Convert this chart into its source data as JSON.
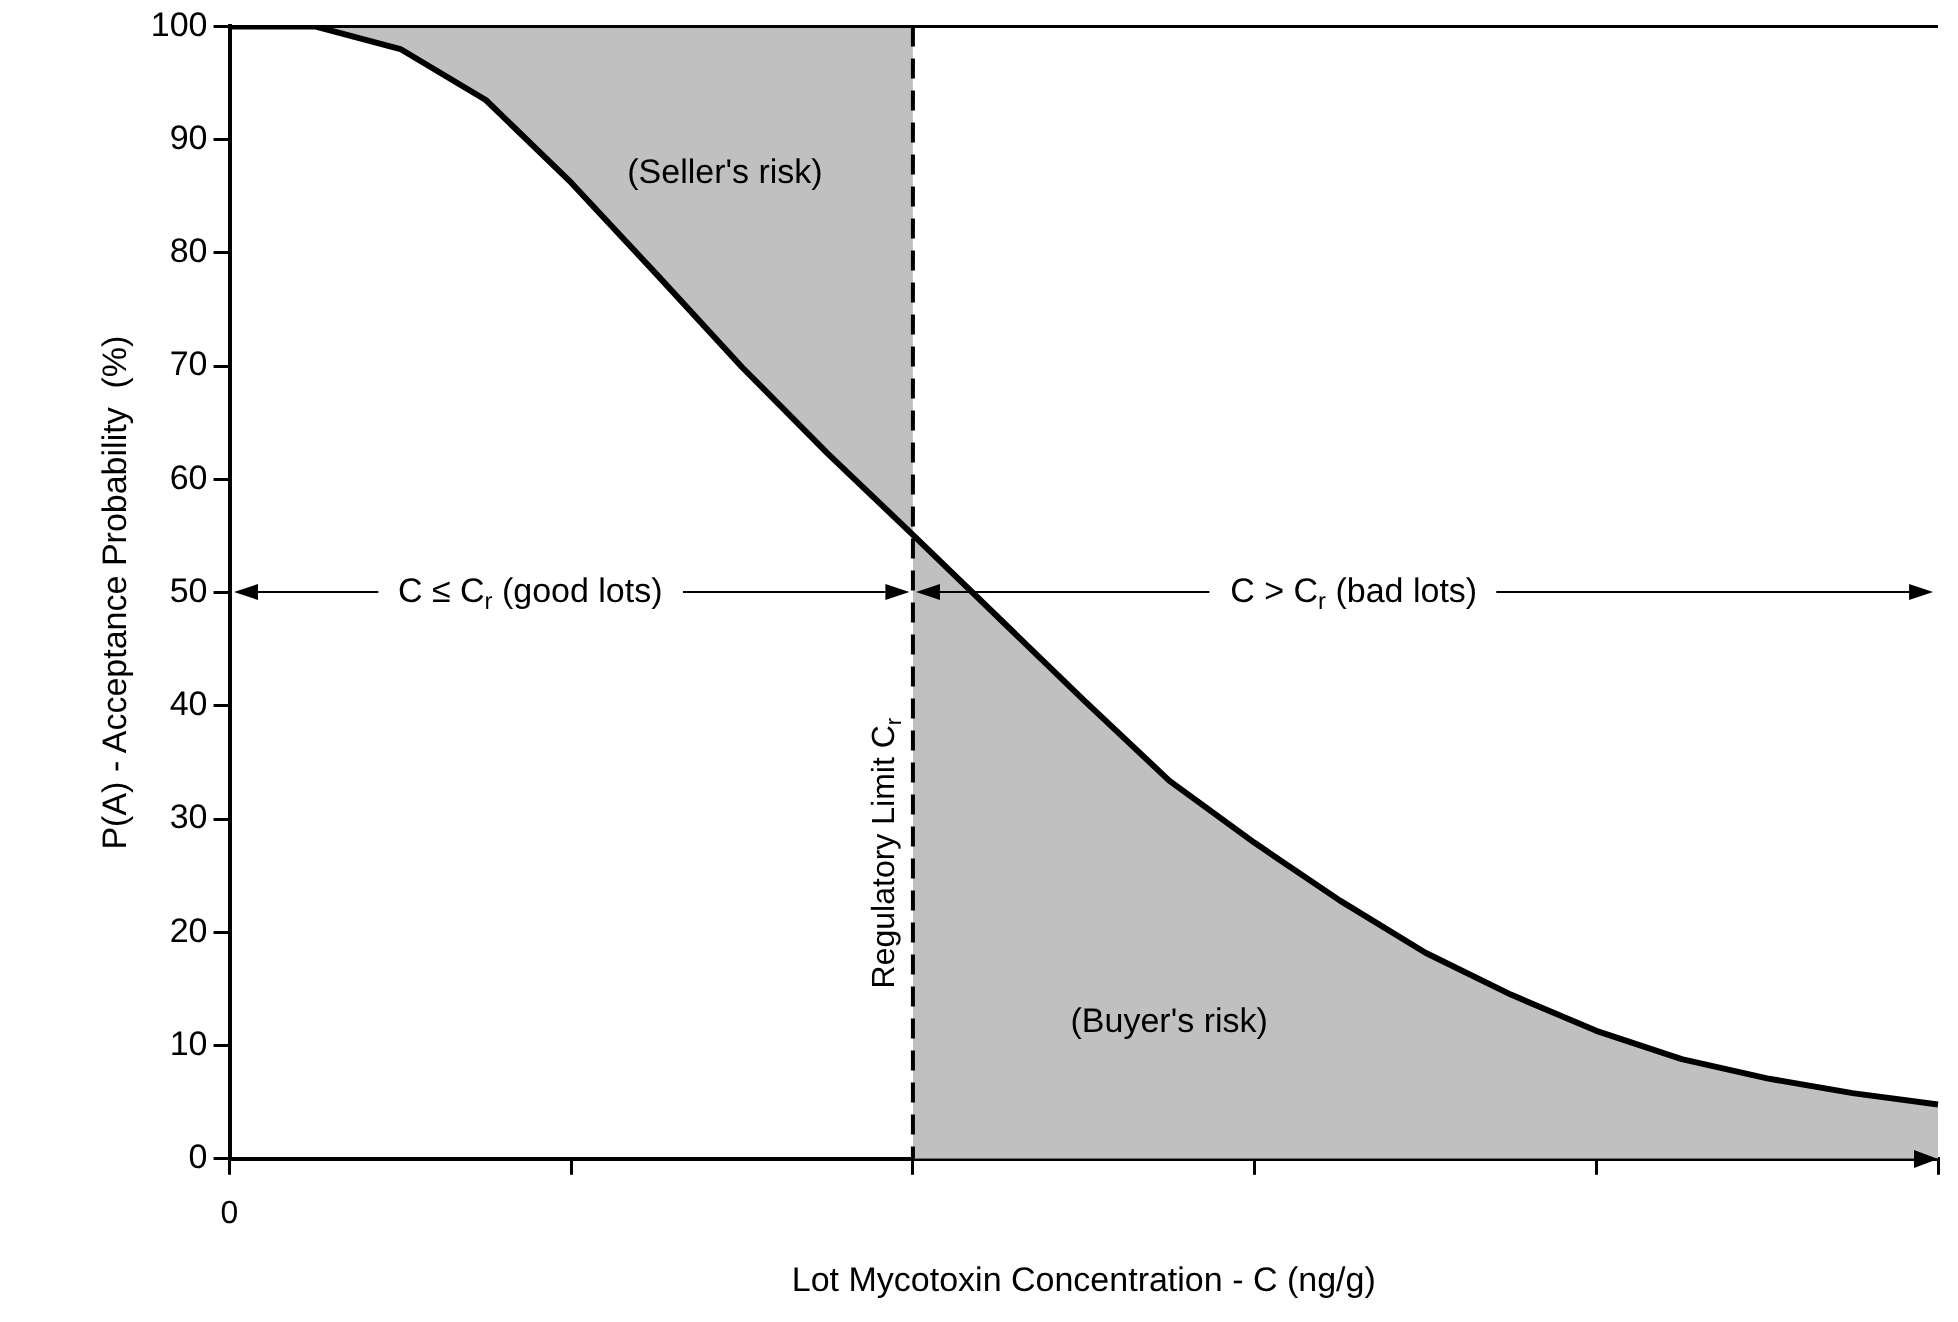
{
  "chart_data": {
    "type": "line",
    "xlabel": "Lot Mycotoxin Concentration - C (ng/g)",
    "ylabel": "P(A) - Acceptance Probability  (%)",
    "categories": [
      "0",
      null,
      null,
      null,
      null,
      null,
      null,
      null,
      null,
      null,
      null,
      null,
      null,
      null,
      null,
      null,
      null,
      null,
      null,
      null,
      null
    ],
    "ylim": [
      0,
      100
    ],
    "yticks": [
      0,
      10,
      20,
      30,
      40,
      50,
      60,
      70,
      80,
      90,
      100
    ],
    "grid": false,
    "legend": false,
    "marker": "none",
    "series": [
      {
        "color": "#000000",
        "line_style": "solid",
        "values": [
          100,
          100,
          98,
          93.5,
          86.2,
          78.1,
          69.9,
          62.3,
          55.1,
          47.8,
          40.5,
          33.4,
          27.9,
          22.8,
          18.2,
          14.5,
          11.3,
          8.8,
          7.1,
          5.8,
          4.8
        ],
        "lower": [
          100,
          100,
          98,
          93.5,
          86.2,
          78.1,
          69.9,
          62.3,
          55.1,
          null,
          null,
          null,
          null,
          null,
          null,
          null,
          null,
          null,
          null,
          null,
          null
        ],
        "upper": [
          100,
          100,
          100,
          100,
          100,
          100,
          100,
          100,
          100,
          null,
          null,
          null,
          null,
          null,
          null,
          null,
          null,
          null,
          null,
          null,
          null
        ]
      },
      {
        "type": "area",
        "color": "#c0c0c0",
        "values": [
          null,
          null,
          null,
          null,
          null,
          null,
          null,
          null,
          55.1,
          47.8,
          40.5,
          33.4,
          27.9,
          22.8,
          18.2,
          14.5,
          11.3,
          8.8,
          7.1,
          5.8,
          4.8
        ]
      }
    ],
    "annotations": [
      "(Seller's risk)",
      "(Buyer's risk)",
      "C ≤ C$_{r}$ (good lots)",
      "C > C$_{r}$ (bad lots)",
      "Regulatory Limit C$_{r}$"
    ]
  }
}
